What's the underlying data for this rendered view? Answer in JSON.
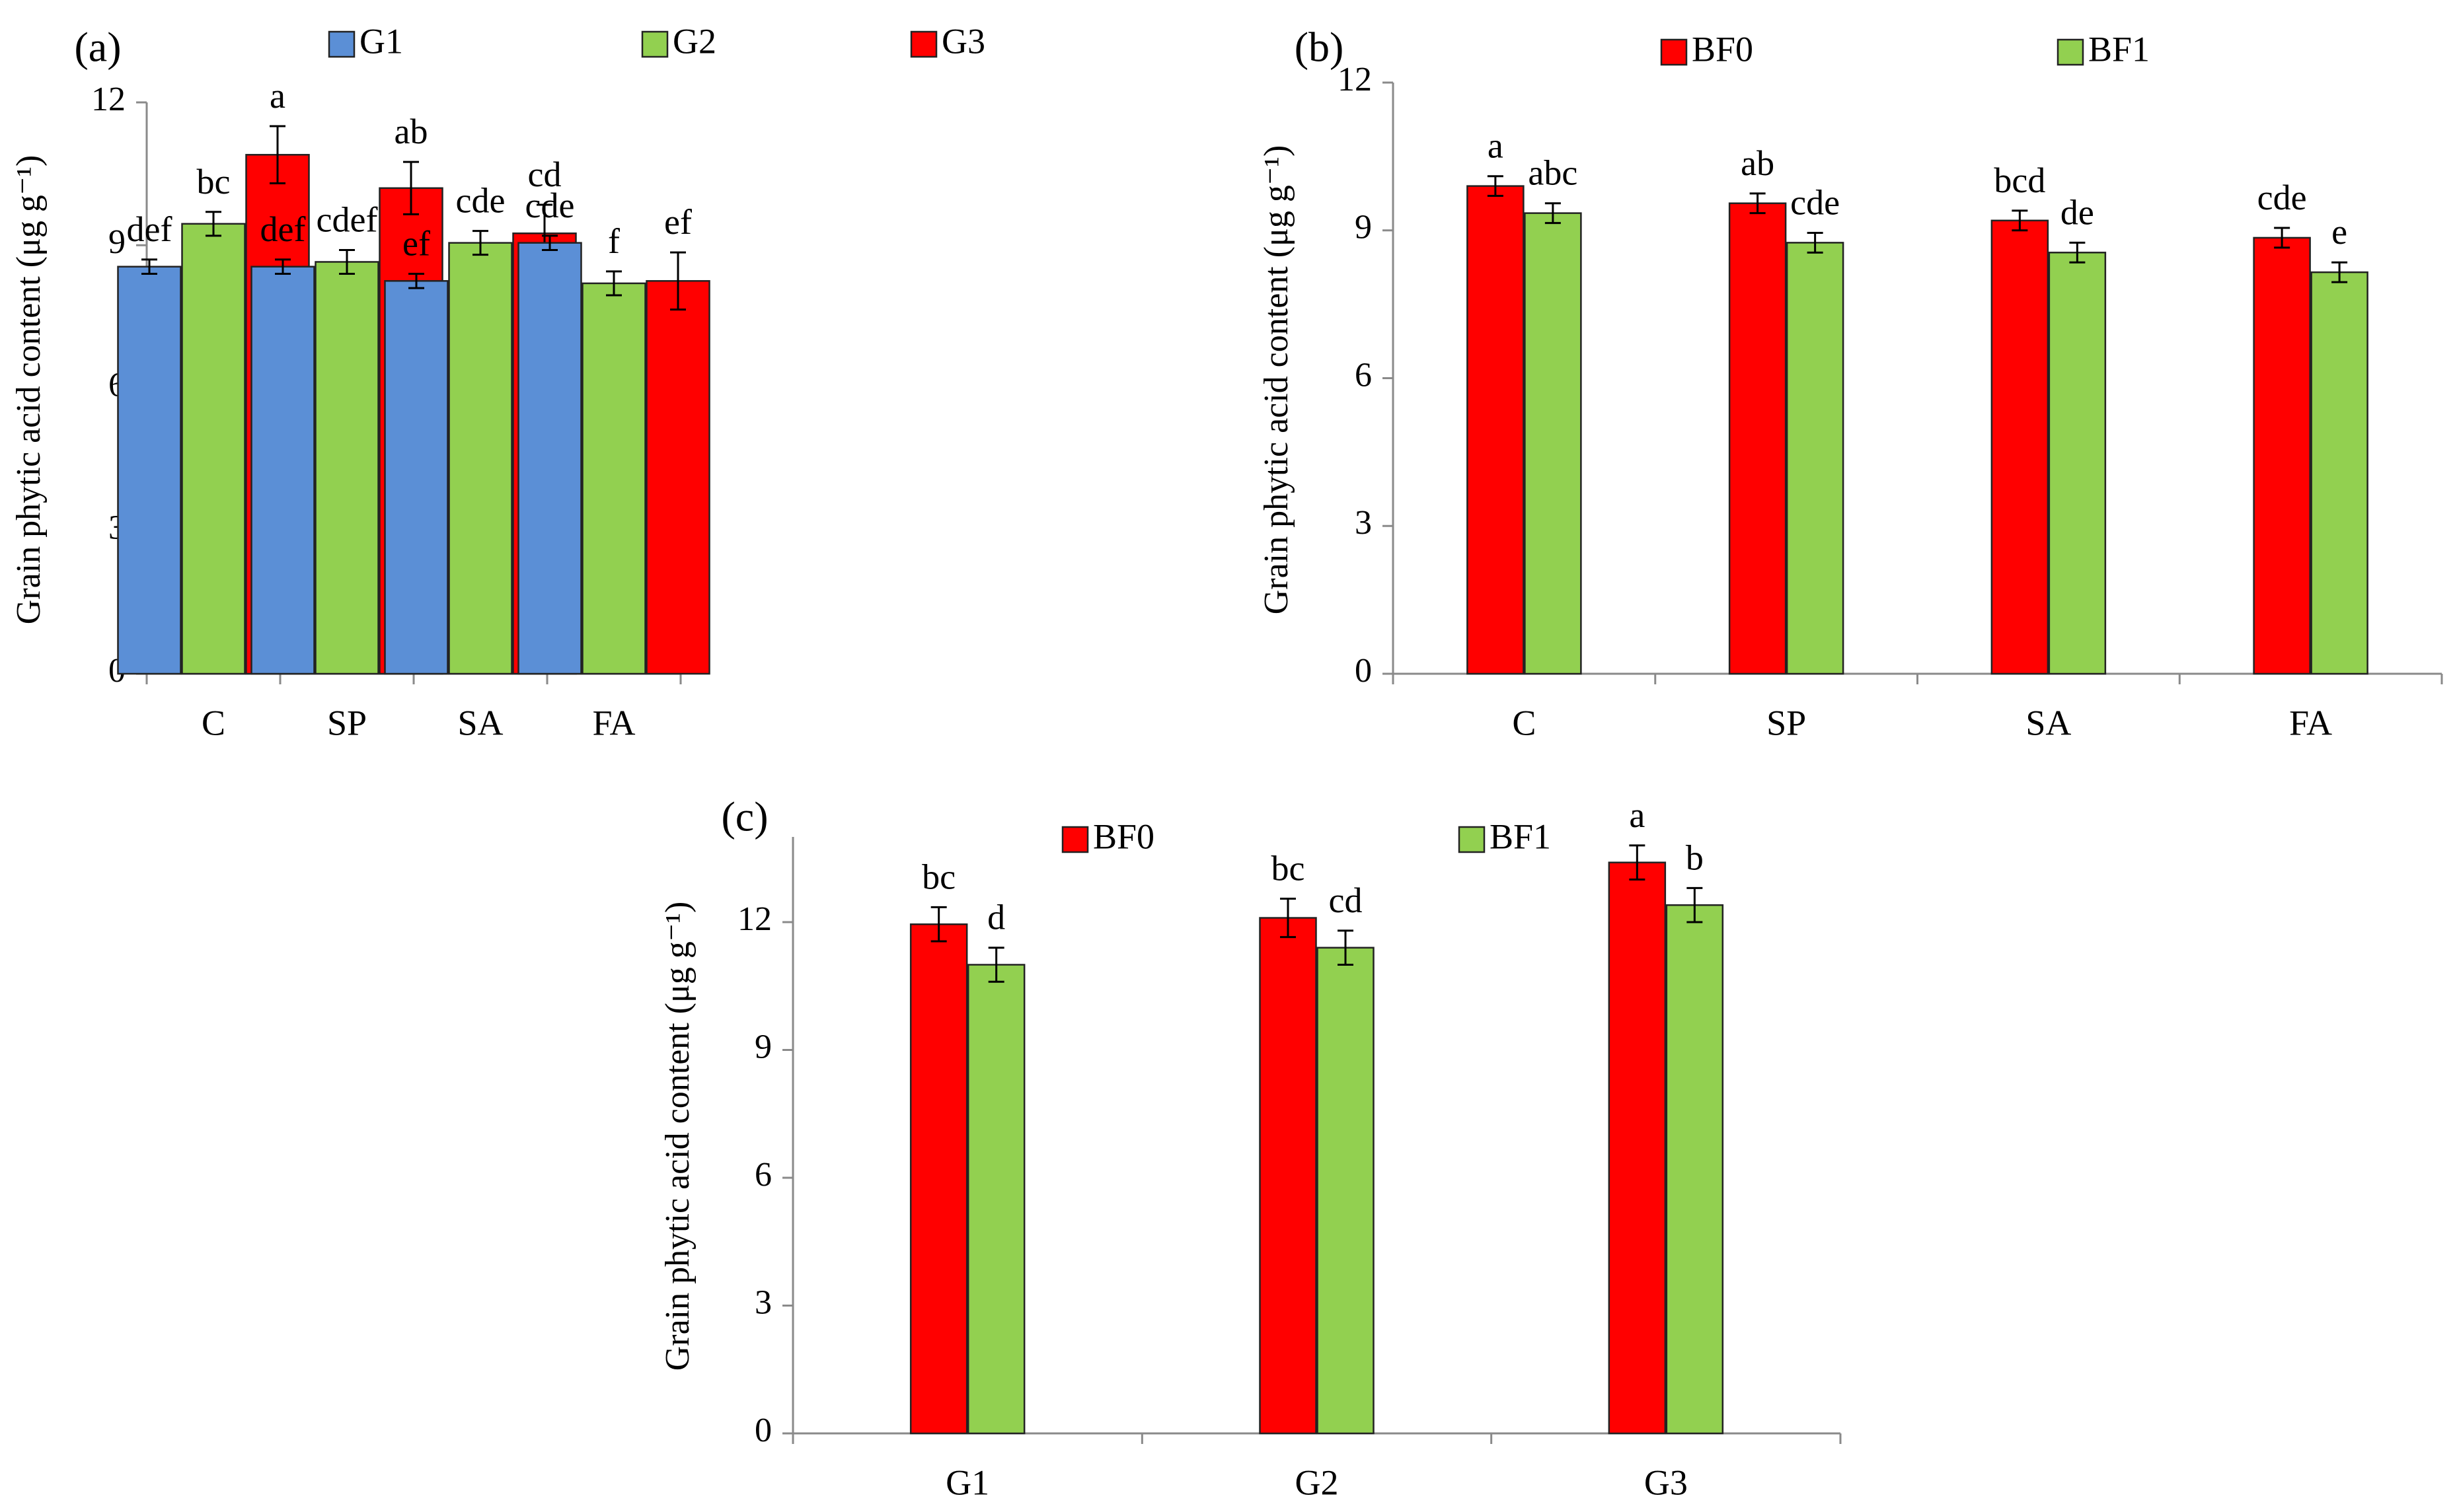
{
  "chart_data": [
    {
      "panel": "(a)",
      "type": "bar",
      "categories": [
        "C",
        "SP",
        "SA",
        "FA"
      ],
      "series": [
        {
          "name": "G1",
          "color": "#5b8fd6",
          "values": [
            8.55,
            8.55,
            8.25,
            9.05
          ],
          "errors": [
            0.15,
            0.15,
            0.15,
            0.15
          ],
          "labels": [
            "def",
            "def",
            "ef",
            "cde"
          ]
        },
        {
          "name": "G2",
          "color": "#92d050",
          "values": [
            9.45,
            8.65,
            9.05,
            8.2
          ],
          "errors": [
            0.25,
            0.25,
            0.25,
            0.25
          ],
          "labels": [
            "bc",
            "cdef",
            "cde",
            "f"
          ]
        },
        {
          "name": "G3",
          "color": "#ff0000",
          "values": [
            10.9,
            10.2,
            9.25,
            8.25
          ],
          "errors": [
            0.6,
            0.55,
            0.6,
            0.6
          ],
          "labels": [
            "a",
            "ab",
            "cd",
            "ef"
          ]
        }
      ],
      "ylabel": "Grain phytic acid content (μg g⁻¹)",
      "ylim": [
        0,
        12
      ],
      "yticks": [
        0,
        3,
        6,
        9,
        12
      ],
      "xlabel": "",
      "legend": "top"
    },
    {
      "panel": "(b)",
      "type": "bar",
      "categories": [
        "C",
        "SP",
        "SA",
        "FA"
      ],
      "series": [
        {
          "name": "BF0",
          "color": "#ff0000",
          "values": [
            9.9,
            9.55,
            9.2,
            8.85
          ],
          "errors": [
            0.2,
            0.2,
            0.2,
            0.2
          ],
          "labels": [
            "a",
            "ab",
            "bcd",
            "cde"
          ]
        },
        {
          "name": "BF1",
          "color": "#92d050",
          "values": [
            9.35,
            8.75,
            8.55,
            8.15
          ],
          "errors": [
            0.2,
            0.2,
            0.2,
            0.2
          ],
          "labels": [
            "abc",
            "cde",
            "de",
            "e"
          ]
        }
      ],
      "ylabel": "Grain phytic acid content (μg g⁻¹)",
      "ylim": [
        0,
        12
      ],
      "yticks": [
        0,
        3,
        6,
        9,
        12
      ],
      "xlabel": "",
      "legend": "top"
    },
    {
      "panel": "(c)",
      "type": "bar",
      "categories": [
        "G1",
        "G2",
        "G3"
      ],
      "series": [
        {
          "name": "BF0",
          "color": "#ff0000",
          "values": [
            11.95,
            12.1,
            13.4
          ],
          "errors": [
            0.4,
            0.45,
            0.4
          ],
          "labels": [
            "bc",
            "bc",
            "a"
          ]
        },
        {
          "name": "BF1",
          "color": "#92d050",
          "values": [
            11.0,
            11.4,
            12.4
          ],
          "errors": [
            0.4,
            0.4,
            0.4
          ],
          "labels": [
            "d",
            "cd",
            "b"
          ]
        }
      ],
      "ylabel": "Grain phytic acid content (μg g⁻¹)",
      "ylim": [
        0,
        14
      ],
      "yticks": [
        0,
        3,
        6,
        9,
        12
      ],
      "xlabel": "",
      "legend": "top"
    }
  ]
}
